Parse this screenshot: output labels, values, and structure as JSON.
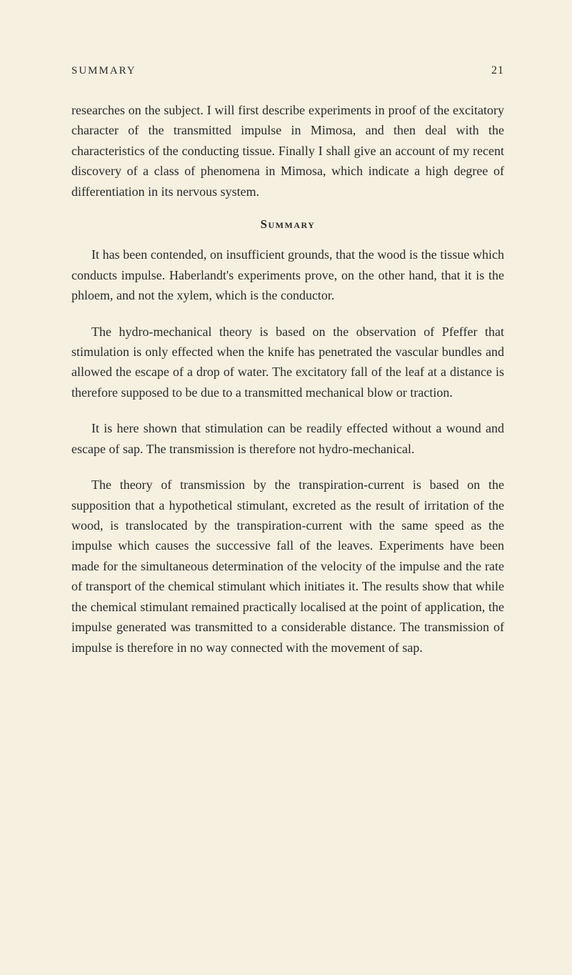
{
  "page": {
    "header_title": "SUMMARY",
    "page_number": "21",
    "paragraphs": {
      "p1": "researches on the subject. I will first describe experiments in proof of the excitatory character of the transmitted impulse in Mimosa, and then deal with the characteristics of the conducting tissue. Finally I shall give an account of my recent discovery of a class of phenomena in Mimosa, which indicate a high degree of differentiation in its nervous system.",
      "section_heading": "Summary",
      "p2": "It has been contended, on insufficient grounds, that the wood is the tissue which conducts impulse. Haberlandt's experiments prove, on the other hand, that it is the phloem, and not the xylem, which is the conductor.",
      "p3": "The hydro-mechanical theory is based on the observation of Pfeffer that stimulation is only effected when the knife has penetrated the vascular bundles and allowed the escape of a drop of water. The excitatory fall of the leaf at a distance is therefore supposed to be due to a transmitted mechanical blow or traction.",
      "p4": "It is here shown that stimulation can be readily effected without a wound and escape of sap. The transmission is therefore not hydro-mechanical.",
      "p5": "The theory of transmission by the transpiration-current is based on the supposition that a hypothetical stimulant, excreted as the result of irritation of the wood, is translocated by the transpiration-current with the same speed as the impulse which causes the successive fall of the leaves. Experiments have been made for the simultaneous determination of the velocity of the impulse and the rate of transport of the chemical stimulant which initiates it. The results show that while the chemical stimulant remained practically localised at the point of application, the impulse generated was transmitted to a considerable distance. The transmission of impulse is therefore in no way connected with the movement of sap."
    }
  },
  "styles": {
    "background_color": "#f5f0e0",
    "text_color": "#2a2a2a",
    "body_font_size": 18,
    "header_font_size": 15,
    "line_height": 1.58
  }
}
